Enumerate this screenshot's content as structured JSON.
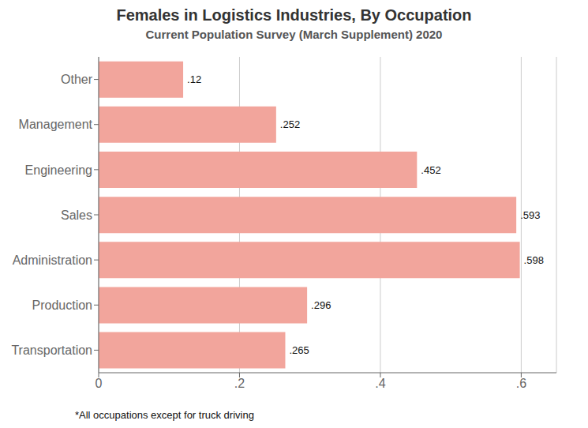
{
  "chart_data": {
    "type": "bar",
    "orientation": "horizontal",
    "title": "Females in Logistics Industries, By Occupation",
    "subtitle": "Current Population Survey (March Supplement) 2020",
    "footnote": "*All occupations except for truck driving",
    "categories": [
      "Transportation",
      "Production",
      "Administration",
      "Sales",
      "Engineering",
      "Management",
      "Other"
    ],
    "values": [
      0.265,
      0.296,
      0.598,
      0.593,
      0.452,
      0.252,
      0.12
    ],
    "value_labels": [
      ".265",
      ".296",
      ".598",
      ".593",
      ".452",
      ".252",
      ".12"
    ],
    "data_labels": true,
    "color": "#F2A59C",
    "xlim": [
      0,
      0.65
    ],
    "xticks": [
      0,
      {
        "value": 0.2,
        "label": ".2"
      },
      {
        "value": 0.4,
        "label": ".4"
      },
      {
        "value": 0.6,
        "label": ".6"
      }
    ],
    "grid": true
  }
}
